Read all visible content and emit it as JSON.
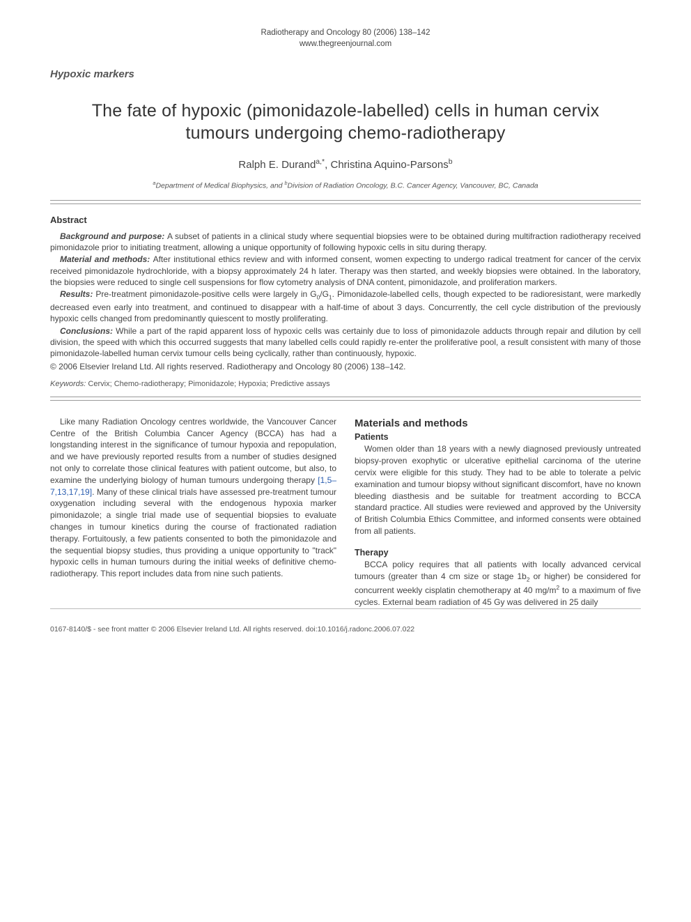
{
  "header": {
    "journal_line": "Radiotherapy and Oncology 80 (2006) 138–142",
    "url": "www.thegreenjournal.com"
  },
  "category": "Hypoxic markers",
  "title": "The fate of hypoxic (pimonidazole-labelled) cells in human cervix tumours undergoing chemo-radiotherapy",
  "authors": {
    "a1_name": "Ralph E. Durand",
    "a1_sup": "a,*",
    "a2_name": "Christina Aquino-Parsons",
    "a2_sup": "b"
  },
  "affiliation": {
    "a_sup": "a",
    "a_text": "Department of Medical Biophysics, and ",
    "b_sup": "b",
    "b_text": "Division of Radiation Oncology, B.C. Cancer Agency, Vancouver, BC, Canada"
  },
  "abstract": {
    "heading": "Abstract",
    "bg_label": "Background and purpose: ",
    "bg_text": "A subset of patients in a clinical study where sequential biopsies were to be obtained during multifraction radiotherapy received pimonidazole prior to initiating treatment, allowing a unique opportunity of following hypoxic cells in situ during therapy.",
    "mm_label": "Material and methods: ",
    "mm_text": "After institutional ethics review and with informed consent, women expecting to undergo radical treatment for cancer of the cervix received pimonidazole hydrochloride, with a biopsy approximately 24 h later. Therapy was then started, and weekly biopsies were obtained. In the laboratory, the biopsies were reduced to single cell suspensions for flow cytometry analysis of DNA content, pimonidazole, and proliferation markers.",
    "res_label": "Results: ",
    "res_text_a": "Pre-treatment pimonidazole-positive cells were largely in G",
    "res_sub1": "0",
    "res_slash": "/G",
    "res_sub2": "1",
    "res_text_b": ". Pimonidazole-labelled cells, though expected to be radioresistant, were markedly decreased even early into treatment, and continued to disappear with a half-time of about 3 days. Concurrently, the cell cycle distribution of the previously hypoxic cells changed from predominantly quiescent to mostly proliferating.",
    "con_label": "Conclusions: ",
    "con_text": "While a part of the rapid apparent loss of hypoxic cells was certainly due to loss of pimonidazole adducts through repair and dilution by cell division, the speed with which this occurred suggests that many labelled cells could rapidly re-enter the proliferative pool, a result consistent with many of those pimonidazole-labelled human cervix tumour cells being cyclically, rather than continuously, hypoxic.",
    "copyright": "© 2006 Elsevier Ireland Ltd. All rights reserved. Radiotherapy and Oncology 80 (2006) 138–142."
  },
  "keywords": {
    "label": "Keywords:",
    "text": " Cervix; Chemo-radiotherapy; Pimonidazole; Hypoxia; Predictive assays"
  },
  "body": {
    "left": {
      "p1a": "Like many Radiation Oncology centres worldwide, the Vancouver Cancer Centre of the British Columbia Cancer Agency (BCCA) has had a longstanding interest in the significance of tumour hypoxia and repopulation, and we have previously reported results from a number of studies designed not only to correlate those clinical features with patient outcome, but also, to examine the underlying biology of human tumours undergoing therapy ",
      "refs": "[1,5–7,13,17,19]",
      "p1b": ". Many of these clinical trials have assessed pre-treatment tumour oxygenation including several with the endogenous hypoxia marker pimonidazole; a single trial made use of sequential biopsies to evaluate changes in tumour kinetics during the course of fractionated radiation therapy. Fortuitously, a few patients consented to both the pimonidazole and the sequential biopsy studies, thus providing a unique opportunity to \"track\" hypoxic cells in human tumours during the initial weeks of definitive chemo-radiotherapy. This report includes data from nine such patients."
    },
    "right": {
      "h1": "Materials and methods",
      "h2a": "Patients",
      "p_patients": "Women older than 18 years with a newly diagnosed previously untreated biopsy-proven exophytic or ulcerative epithelial carcinoma of the uterine cervix were eligible for this study. They had to be able to tolerate a pelvic examination and tumour biopsy without significant discomfort, have no known bleeding diasthesis and be suitable for treatment according to BCCA standard practice. All studies were reviewed and approved by the University of British Columbia Ethics Committee, and informed consents were obtained from all patients.",
      "h2b": "Therapy",
      "p_therapy_a": "BCCA policy requires that all patients with locally advanced cervical tumours (greater than 4 cm size or stage 1b",
      "p_therapy_sub": "2",
      "p_therapy_b": " or higher) be considered for concurrent weekly cisplatin chemotherapy at 40 mg/m",
      "p_therapy_sup": "2",
      "p_therapy_c": " to a maximum of five cycles. External beam radiation of 45 Gy was delivered in 25 daily"
    }
  },
  "footer": {
    "text": "0167-8140/$ - see front matter © 2006 Elsevier Ireland Ltd. All rights reserved. doi:10.1016/j.radonc.2006.07.022"
  }
}
